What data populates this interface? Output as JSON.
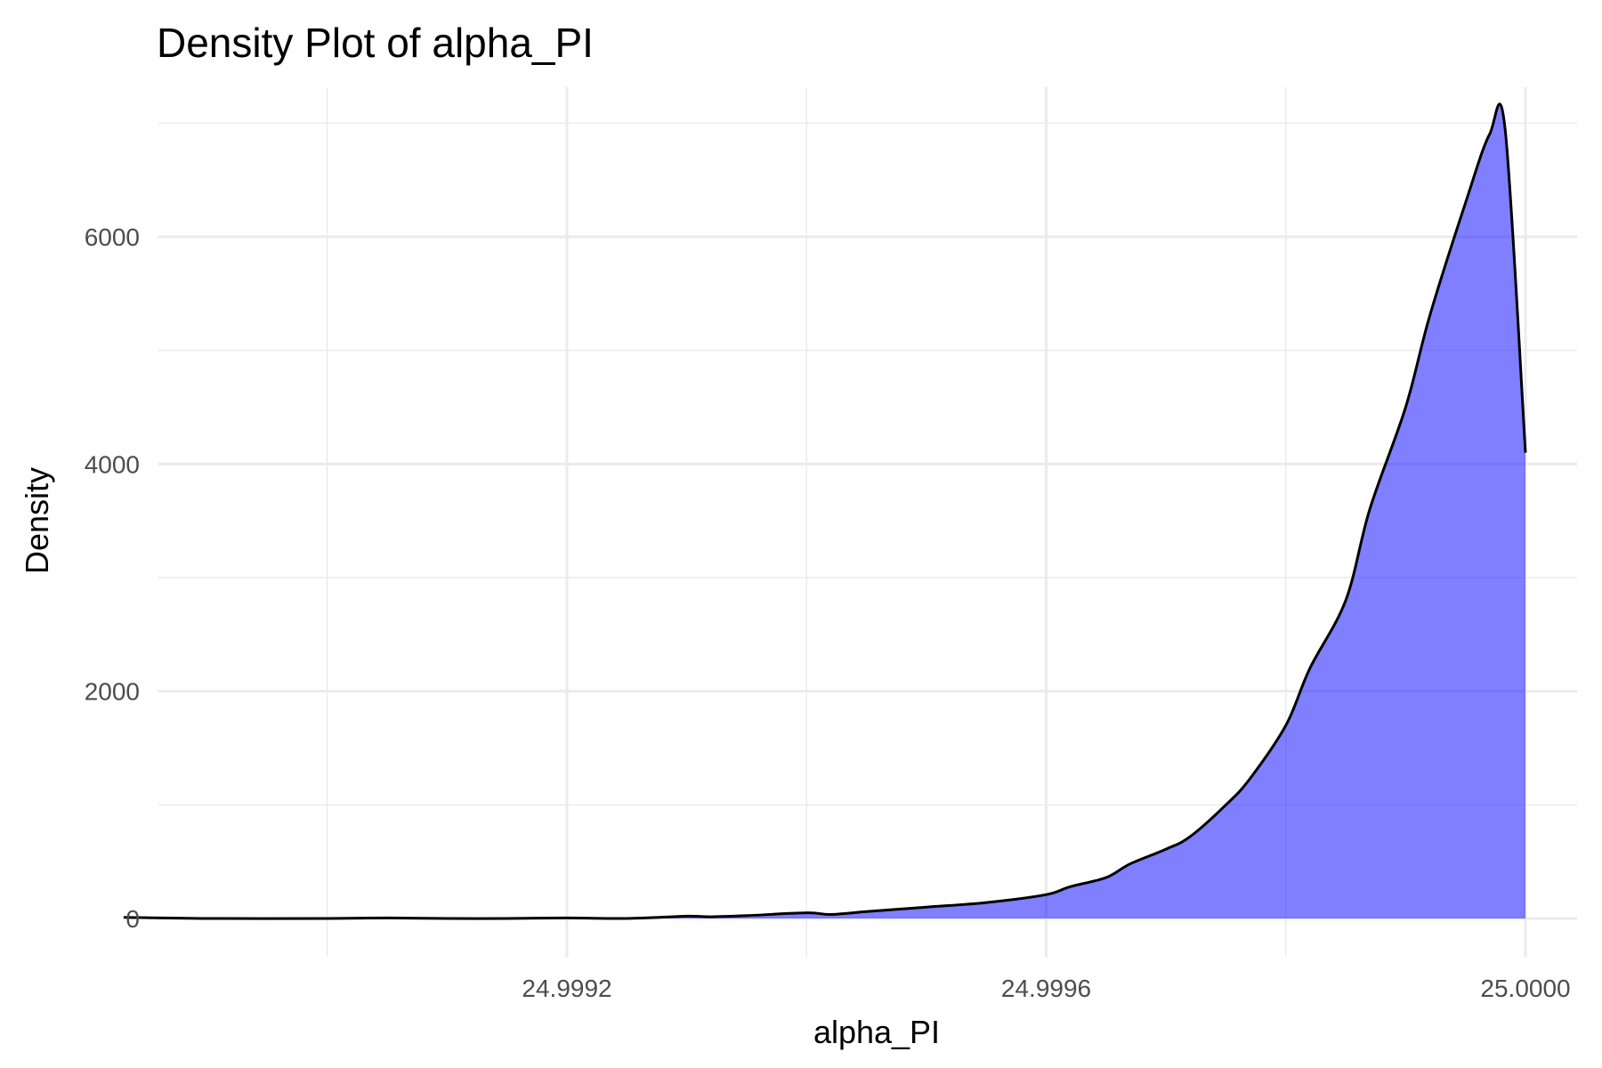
{
  "chart_data": {
    "type": "area",
    "title": "Density Plot of alpha_PI",
    "xlabel": "alpha_PI",
    "ylabel": "Density",
    "xlim": [
      24.99885,
      25.0
    ],
    "ylim": [
      -300,
      7000
    ],
    "x_ticks": [
      24.9992,
      24.9996,
      25.0
    ],
    "x_tick_labels": [
      "24.9992",
      "24.9996",
      "25.0000"
    ],
    "x_minor_ticks": [
      24.999,
      24.9994,
      24.9998
    ],
    "y_ticks": [
      0,
      2000,
      4000,
      6000
    ],
    "y_tick_labels": [
      "0",
      "2000",
      "4000",
      "6000"
    ],
    "y_minor_ticks": [
      1000,
      3000,
      5000,
      7000
    ],
    "grid": true,
    "fill_color": "#0000ff",
    "fill_opacity": 0.5,
    "line_color": "#000000",
    "x": [
      24.99883,
      24.9989,
      24.999,
      24.99905,
      24.9991,
      24.99915,
      24.9992,
      24.99925,
      24.9993,
      24.99932,
      24.99935,
      24.9994,
      24.99942,
      24.99945,
      24.9995,
      24.99955,
      24.9996,
      24.99962,
      24.99965,
      24.99967,
      24.9997,
      24.99972,
      24.99975,
      24.99977,
      24.9998,
      24.99982,
      24.99985,
      24.99987,
      24.9999,
      24.99992,
      24.99995,
      24.99997,
      24.999983,
      25.0
    ],
    "y": [
      10,
      0,
      0,
      5,
      0,
      0,
      5,
      0,
      20,
      15,
      25,
      50,
      35,
      60,
      100,
      140,
      210,
      280,
      360,
      480,
      610,
      720,
      1000,
      1230,
      1700,
      2200,
      2800,
      3600,
      4500,
      5300,
      6300,
      6900,
      6950,
      4100
    ]
  }
}
